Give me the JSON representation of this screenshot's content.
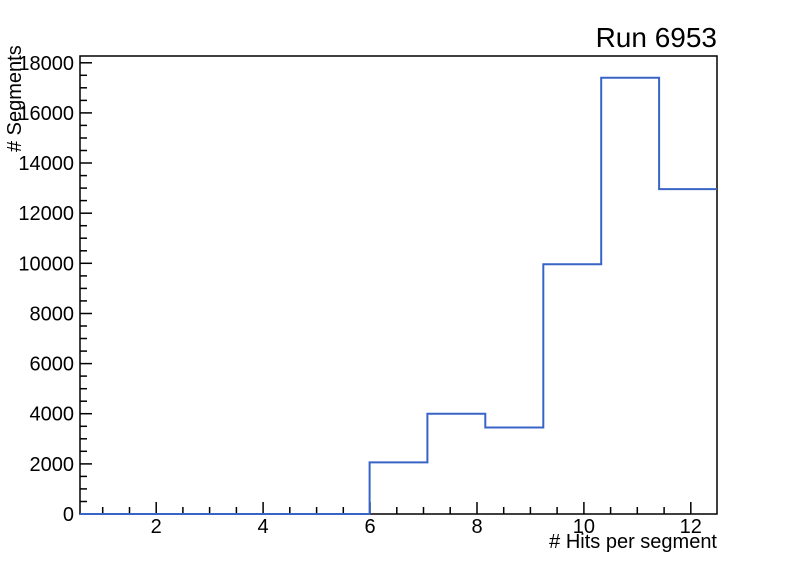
{
  "window": {
    "background": "#ffffff"
  },
  "chart_data": {
    "type": "histogram-step",
    "title": "Run 6953",
    "xlabel": "# Hits per segment",
    "ylabel": "# Segments",
    "xlim": [
      0.575,
      12.49
    ],
    "ylim": [
      0,
      18270
    ],
    "grid": false,
    "legend_position": "none",
    "line_color": "#3865c5",
    "axis_color": "#000000",
    "text_color": "#000000",
    "x_major_ticks": [
      {
        "value": 2,
        "label": "2"
      },
      {
        "value": 4,
        "label": "4"
      },
      {
        "value": 6,
        "label": "6"
      },
      {
        "value": 8,
        "label": "8"
      },
      {
        "value": 10,
        "label": "10"
      },
      {
        "value": 12,
        "label": "12"
      }
    ],
    "x_minor_tick_step": 0.5,
    "y_major_ticks": [
      {
        "value": 0,
        "label": "0"
      },
      {
        "value": 2000,
        "label": "2000"
      },
      {
        "value": 4000,
        "label": "4000"
      },
      {
        "value": 6000,
        "label": "6000"
      },
      {
        "value": 8000,
        "label": "8000"
      },
      {
        "value": 10000,
        "label": "10000"
      },
      {
        "value": 12000,
        "label": "12000"
      },
      {
        "value": 14000,
        "label": "14000"
      },
      {
        "value": 16000,
        "label": "16000"
      },
      {
        "value": 18000,
        "label": "18000"
      }
    ],
    "y_minor_tick_step": 500,
    "bin_edges": [
      0.575,
      1.658,
      2.741,
      3.825,
      4.908,
      5.991,
      7.074,
      8.157,
      9.241,
      10.324,
      11.407,
      12.49
    ],
    "counts": [
      0,
      0,
      0,
      0,
      0,
      2060,
      4000,
      3450,
      9960,
      17400,
      12960
    ]
  }
}
